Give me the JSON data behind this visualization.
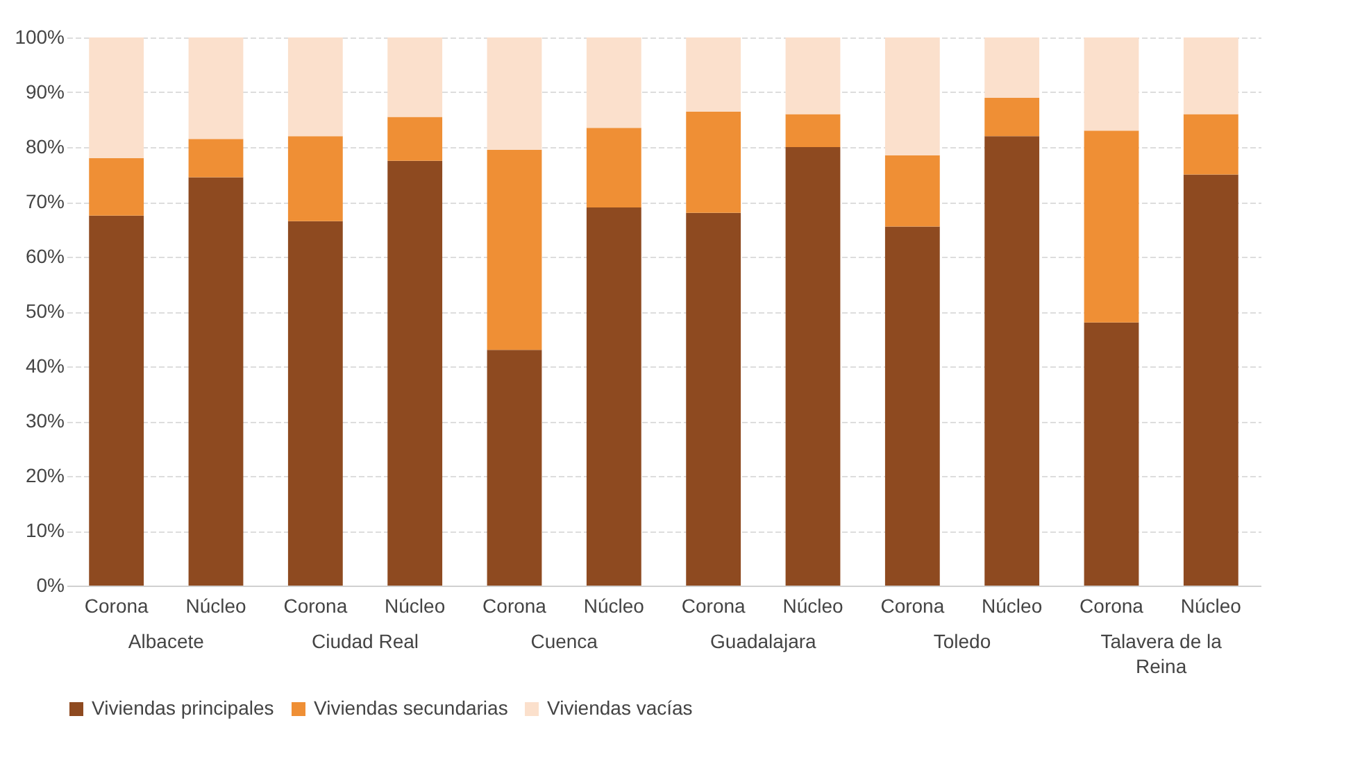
{
  "chart_data": {
    "type": "bar",
    "stacked": true,
    "categories": [
      "Corona",
      "Núcleo",
      "Corona",
      "Núcleo",
      "Corona",
      "Núcleo",
      "Corona",
      "Núcleo",
      "Corona",
      "Núcleo",
      "Corona",
      "Núcleo"
    ],
    "annotations": [
      "Albacete",
      "Ciudad Real",
      "Cuenca",
      "Guadalajara",
      "Toledo",
      "Talavera de la Reina"
    ],
    "series": [
      {
        "name": "Viviendas principales",
        "color": "#8e4a20",
        "values": [
          67.5,
          74.5,
          66.5,
          77.5,
          43,
          69,
          68,
          80,
          65.5,
          82,
          48,
          75
        ]
      },
      {
        "name": "Viviendas secundarias",
        "color": "#ef8f35",
        "values": [
          10.5,
          7,
          15.5,
          8,
          36.5,
          14.5,
          18.5,
          6,
          13,
          7,
          35,
          11
        ]
      },
      {
        "name": "Viviendas vacías",
        "color": "#fbe0cc",
        "values": [
          22,
          18.5,
          18,
          14.5,
          20.5,
          16.5,
          13.5,
          14,
          21.5,
          11,
          17,
          14
        ]
      }
    ],
    "ylim": [
      0,
      100
    ],
    "yticks": [
      {
        "value": 0,
        "label": "0%"
      },
      {
        "value": 10,
        "label": "10%"
      },
      {
        "value": 20,
        "label": "20%"
      },
      {
        "value": 30,
        "label": "30%"
      },
      {
        "value": 40,
        "label": "40%"
      },
      {
        "value": 50,
        "label": "50%"
      },
      {
        "value": 60,
        "label": "60%"
      },
      {
        "value": 70,
        "label": "70%"
      },
      {
        "value": 80,
        "label": "80%"
      },
      {
        "value": 90,
        "label": "90%"
      },
      {
        "value": 100,
        "label": "100%"
      }
    ],
    "grid": "y",
    "legend": "bottom"
  }
}
